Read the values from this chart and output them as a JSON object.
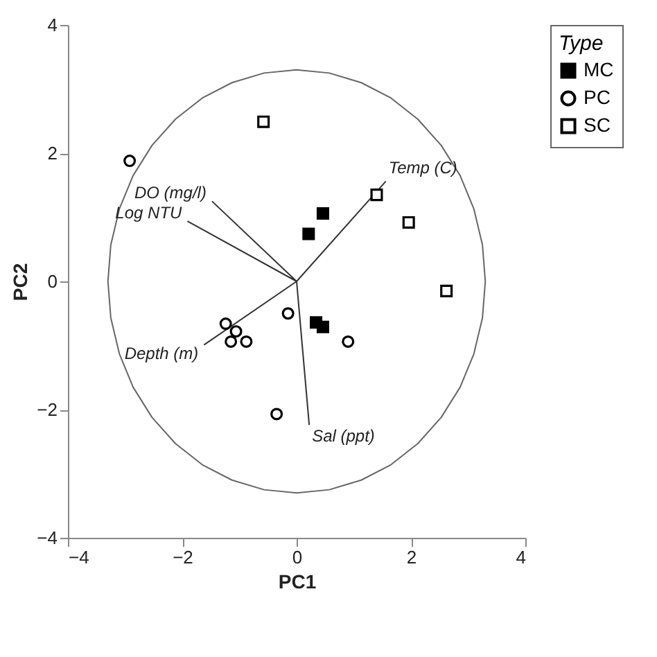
{
  "chart_data": {
    "type": "scatter",
    "xlabel": "PC1",
    "ylabel": "PC2",
    "legend_title": "Type",
    "legend": "top right",
    "grid": false,
    "xlim": [
      -4,
      4
    ],
    "ylim": [
      -4,
      4
    ],
    "xticks": [
      -4,
      -2,
      0,
      2,
      4
    ],
    "yticks": [
      -4,
      -2,
      0,
      2,
      4
    ],
    "series": [
      {
        "name": "MC",
        "color": "#000000",
        "marker": "square",
        "x": [
          0.46,
          0.21,
          0.34,
          0.46
        ],
        "values": [
          1.06,
          0.74,
          -0.64,
          -0.71
        ]
      },
      {
        "name": "PC",
        "color": "#ffffff",
        "marker": "circle",
        "x": [
          -2.92,
          -0.15,
          -1.24,
          -1.06,
          -1.15,
          -0.88,
          -0.35,
          0.9
        ],
        "values": [
          1.88,
          -0.5,
          -0.66,
          -0.78,
          -0.94,
          -0.94,
          -2.07,
          -0.94
        ]
      },
      {
        "name": "SC",
        "color": "#ffffff",
        "marker": "square",
        "x": [
          1.4,
          1.96,
          2.62,
          -0.58
        ],
        "values": [
          1.35,
          0.92,
          -0.15,
          2.49
        ]
      },
      {
        "type": "line",
        "color": "#333333",
        "marker": "none",
        "x": [
          0,
          -1.48,
          null,
          0,
          -1.91,
          null,
          0,
          1.56,
          null,
          0,
          -1.62,
          null,
          0,
          0.22
        ],
        "values": [
          0,
          1.25,
          null,
          0,
          0.94,
          null,
          0,
          1.56,
          null,
          0,
          -0.99,
          null,
          0,
          -2.24
        ]
      },
      {
        "type": "line",
        "color": "#666666",
        "marker": "none",
        "x": [
          -3.3,
          -3.25,
          -3.1,
          -2.86,
          -2.53,
          -2.12,
          -1.65,
          -1.13,
          -0.57,
          0,
          0.57,
          1.13,
          1.65,
          2.12,
          2.53,
          2.86,
          3.1,
          3.25,
          3.3,
          null,
          -3.3,
          -3.25,
          -3.1,
          -2.86,
          -2.53,
          -2.12,
          -1.65,
          -1.13,
          -0.57,
          0,
          0.57,
          1.13,
          1.65,
          2.12,
          2.53,
          2.86,
          3.1,
          3.25,
          3.3
        ],
        "values": [
          0,
          0.57,
          1.13,
          1.65,
          2.12,
          2.53,
          2.86,
          3.1,
          3.25,
          3.3,
          3.25,
          3.1,
          2.86,
          2.53,
          2.12,
          1.65,
          1.13,
          0.57,
          0,
          null,
          0,
          -0.57,
          -1.13,
          -1.65,
          -2.12,
          -2.53,
          -2.86,
          -3.1,
          -3.25,
          -3.3,
          -3.25,
          -3.1,
          -2.86,
          -2.53,
          -2.12,
          -1.65,
          -1.13,
          -0.57,
          0
        ]
      }
    ],
    "annotations": [
      {
        "text": "DO (mg/l)",
        "x": -1.48,
        "y": 1.25
      },
      {
        "text": "Log NTU",
        "x": -1.91,
        "y": 0.94
      },
      {
        "text": "Temp (C)",
        "x": 1.56,
        "y": 1.56
      },
      {
        "text": "Depth (m)",
        "x": -1.62,
        "y": -0.99
      },
      {
        "text": "Sal (ppt)",
        "x": 0.22,
        "y": -2.24
      }
    ]
  }
}
